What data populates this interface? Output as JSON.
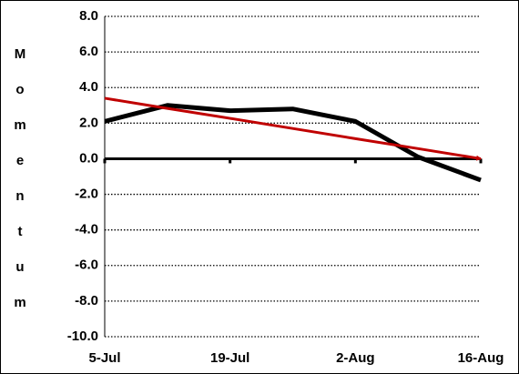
{
  "chart_data": {
    "type": "line",
    "y_label": "Momentum",
    "categories": [
      "5-Jul",
      null,
      "19-Jul",
      null,
      "2-Aug",
      null,
      "16-Aug"
    ],
    "series": [
      {
        "color": "#000000",
        "values": [
          2.1,
          3.0,
          2.7,
          2.8,
          2.1,
          0.1,
          -1.2
        ]
      },
      {
        "color": "#c00000",
        "values": [
          3.4,
          2.83,
          2.27,
          1.7,
          1.13,
          0.57,
          0.0
        ],
        "arrow": true
      }
    ],
    "ylim": [
      -10,
      8
    ],
    "yticks": [
      {
        "value": -10,
        "label": "-10.0"
      },
      {
        "value": -8,
        "label": "-8.0"
      },
      {
        "value": -6,
        "label": "-6.0"
      },
      {
        "value": -4,
        "label": "-4.0"
      },
      {
        "value": -2,
        "label": "-2.0"
      },
      {
        "value": 0,
        "label": "0.0"
      },
      {
        "value": 2,
        "label": "2.0"
      },
      {
        "value": 4,
        "label": "4.0"
      },
      {
        "value": 6,
        "label": "6.0"
      },
      {
        "value": 8,
        "label": "8.0"
      }
    ],
    "grid": true
  }
}
